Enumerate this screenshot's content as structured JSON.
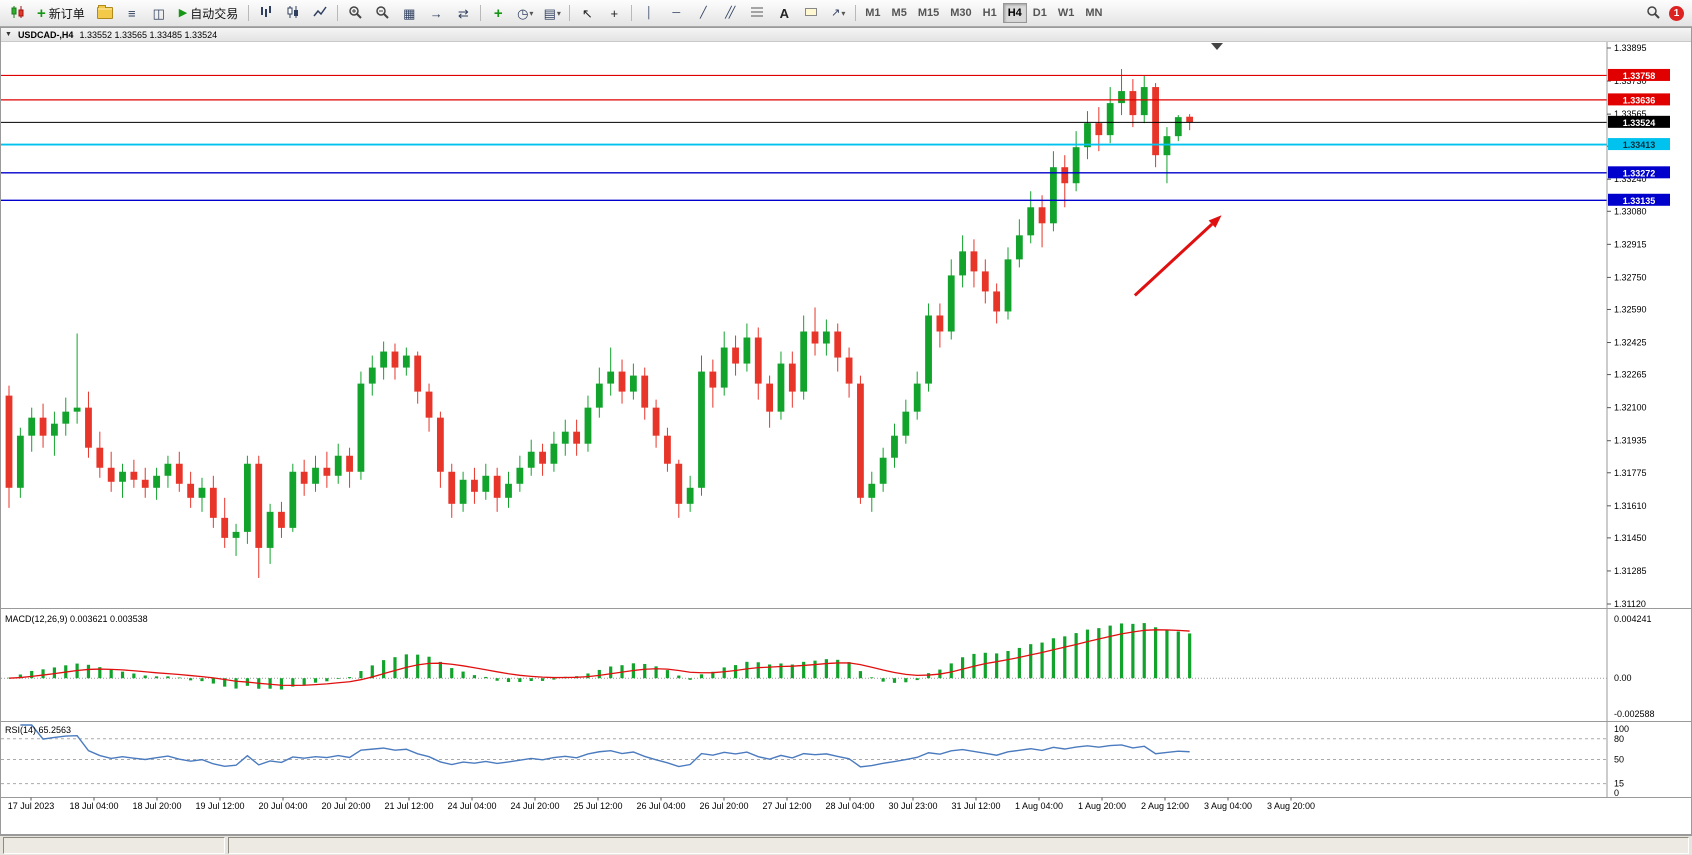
{
  "window": {
    "title_symbol": "USDCAD-,H4",
    "ohlc": "1.33552 1.33565 1.33485 1.33524"
  },
  "toolbar": {
    "new_order_label": "新订单",
    "autotrade_label": "自动交易",
    "notification_count": "1",
    "timeframes": [
      {
        "label": "M1"
      },
      {
        "label": "M5"
      },
      {
        "label": "M15"
      },
      {
        "label": "M30"
      },
      {
        "label": "H1"
      },
      {
        "label": "H4"
      },
      {
        "label": "D1"
      },
      {
        "label": "W1"
      },
      {
        "label": "MN"
      }
    ]
  },
  "indicators": {
    "macd": {
      "label": "MACD(12,26,9) 0.003621 0.003538",
      "params": {
        "fast": 12,
        "slow": 26,
        "signal": 9
      },
      "axis": {
        "max": 0.004241,
        "min": -0.002588,
        "max_label": "0.004241",
        "zero_label": "0.00",
        "min_label": "-0.002588"
      }
    },
    "rsi": {
      "label": "RSI(14) 65.2563",
      "period": 14,
      "levels": [
        80,
        50,
        15
      ],
      "axis_ticks": [
        100,
        80,
        50,
        15,
        0
      ]
    }
  },
  "chart_data": {
    "type": "candlestick",
    "symbol": "USDCAD",
    "timeframe": "H4",
    "ylim": [
      1.3112,
      1.33895
    ],
    "colors": {
      "up": "#12a32c",
      "down": "#e8352a",
      "macd_hist": "#12a32c",
      "macd_signal": "#e01010",
      "rsi_line": "#4b7bbf"
    },
    "price_ticks": [
      1.33895,
      1.3373,
      1.33565,
      1.33405,
      1.3324,
      1.3308,
      1.32915,
      1.3275,
      1.3259,
      1.32425,
      1.32265,
      1.321,
      1.31935,
      1.31775,
      1.3161,
      1.3145,
      1.31285,
      1.3112
    ],
    "levels": [
      {
        "price": 1.33758,
        "color": "#e00000",
        "width": 1.2,
        "text": "#ffffff",
        "type": "resistance"
      },
      {
        "price": 1.33636,
        "color": "#e00000",
        "width": 1.2,
        "text": "#ffffff",
        "type": "resistance"
      },
      {
        "price": 1.33524,
        "color": "#000000",
        "width": 1.0,
        "text": "#ffffff",
        "type": "current-price"
      },
      {
        "price": 1.33413,
        "color": "#00c2ee",
        "width": 1.8,
        "text": "#00313f",
        "type": "support"
      },
      {
        "price": 1.33272,
        "color": "#0000cc",
        "width": 1.4,
        "text": "#ffffff",
        "type": "support"
      },
      {
        "price": 1.33135,
        "color": "#0000cc",
        "width": 1.4,
        "text": "#ffffff",
        "type": "support"
      }
    ],
    "arrow": {
      "x1_frac": 0.706,
      "price1": 1.3266,
      "x2_frac": 0.76,
      "price2": 1.3306,
      "color": "#e01010"
    },
    "time_labels": [
      "17 Jul 2023",
      "18 Jul 04:00",
      "18 Jul 20:00",
      "19 Jul 12:00",
      "20 Jul 04:00",
      "20 Jul 20:00",
      "21 Jul 12:00",
      "24 Jul 04:00",
      "24 Jul 20:00",
      "25 Jul 12:00",
      "26 Jul 04:00",
      "26 Jul 20:00",
      "27 Jul 12:00",
      "28 Jul 04:00",
      "30 Jul 23:00",
      "31 Jul 12:00",
      "1 Aug 04:00",
      "1 Aug 20:00",
      "2 Aug 12:00",
      "3 Aug 04:00",
      "3 Aug 20:00"
    ],
    "candles": [
      [
        1.3216,
        1.3221,
        1.316,
        1.317
      ],
      [
        1.317,
        1.32,
        1.3165,
        1.3196
      ],
      [
        1.3196,
        1.321,
        1.3188,
        1.3205
      ],
      [
        1.3205,
        1.3212,
        1.319,
        1.3196
      ],
      [
        1.3196,
        1.3208,
        1.3186,
        1.3202
      ],
      [
        1.3202,
        1.3215,
        1.3196,
        1.3208
      ],
      [
        1.3208,
        1.3247,
        1.3202,
        1.321
      ],
      [
        1.321,
        1.3218,
        1.3185,
        1.319
      ],
      [
        1.319,
        1.3198,
        1.3175,
        1.318
      ],
      [
        1.318,
        1.3188,
        1.3168,
        1.3173
      ],
      [
        1.3173,
        1.3182,
        1.3165,
        1.3178
      ],
      [
        1.3178,
        1.3184,
        1.317,
        1.3174
      ],
      [
        1.3174,
        1.318,
        1.3165,
        1.317
      ],
      [
        1.317,
        1.318,
        1.3164,
        1.3176
      ],
      [
        1.3176,
        1.3186,
        1.317,
        1.3182
      ],
      [
        1.3182,
        1.3188,
        1.3168,
        1.3172
      ],
      [
        1.3172,
        1.3178,
        1.316,
        1.3165
      ],
      [
        1.3165,
        1.3175,
        1.3158,
        1.317
      ],
      [
        1.317,
        1.3176,
        1.315,
        1.3155
      ],
      [
        1.3155,
        1.3165,
        1.314,
        1.3145
      ],
      [
        1.3145,
        1.3152,
        1.3136,
        1.3148
      ],
      [
        1.3148,
        1.3186,
        1.3142,
        1.3182
      ],
      [
        1.3182,
        1.3186,
        1.3125,
        1.314
      ],
      [
        1.314,
        1.3162,
        1.3132,
        1.3158
      ],
      [
        1.3158,
        1.3163,
        1.3145,
        1.315
      ],
      [
        1.315,
        1.3182,
        1.3148,
        1.3178
      ],
      [
        1.3178,
        1.3184,
        1.3166,
        1.3172
      ],
      [
        1.3172,
        1.3186,
        1.3168,
        1.318
      ],
      [
        1.318,
        1.3188,
        1.317,
        1.3176
      ],
      [
        1.3176,
        1.3192,
        1.3172,
        1.3186
      ],
      [
        1.3186,
        1.319,
        1.317,
        1.3178
      ],
      [
        1.3178,
        1.3228,
        1.3174,
        1.3222
      ],
      [
        1.3222,
        1.3236,
        1.3216,
        1.323
      ],
      [
        1.323,
        1.3243,
        1.3224,
        1.3238
      ],
      [
        1.3238,
        1.3242,
        1.3224,
        1.323
      ],
      [
        1.323,
        1.324,
        1.3226,
        1.3236
      ],
      [
        1.3236,
        1.3238,
        1.3212,
        1.3218
      ],
      [
        1.3218,
        1.3222,
        1.3198,
        1.3205
      ],
      [
        1.3205,
        1.3208,
        1.317,
        1.3178
      ],
      [
        1.3178,
        1.3182,
        1.3155,
        1.3162
      ],
      [
        1.3162,
        1.3178,
        1.3158,
        1.3174
      ],
      [
        1.3174,
        1.318,
        1.3162,
        1.3168
      ],
      [
        1.3168,
        1.3182,
        1.3164,
        1.3176
      ],
      [
        1.3176,
        1.318,
        1.3158,
        1.3165
      ],
      [
        1.3165,
        1.3178,
        1.316,
        1.3172
      ],
      [
        1.3172,
        1.3186,
        1.3168,
        1.318
      ],
      [
        1.318,
        1.3194,
        1.3176,
        1.3188
      ],
      [
        1.3188,
        1.3192,
        1.3176,
        1.3182
      ],
      [
        1.3182,
        1.3198,
        1.3178,
        1.3192
      ],
      [
        1.3192,
        1.3204,
        1.3186,
        1.3198
      ],
      [
        1.3198,
        1.3204,
        1.3186,
        1.3192
      ],
      [
        1.3192,
        1.3216,
        1.3188,
        1.321
      ],
      [
        1.321,
        1.323,
        1.3205,
        1.3222
      ],
      [
        1.3222,
        1.324,
        1.3216,
        1.3228
      ],
      [
        1.3228,
        1.3234,
        1.3212,
        1.3218
      ],
      [
        1.3218,
        1.3232,
        1.3214,
        1.3226
      ],
      [
        1.3226,
        1.323,
        1.3204,
        1.321
      ],
      [
        1.321,
        1.3214,
        1.319,
        1.3196
      ],
      [
        1.3196,
        1.32,
        1.3178,
        1.3182
      ],
      [
        1.3182,
        1.3184,
        1.3155,
        1.3162
      ],
      [
        1.3162,
        1.3176,
        1.3158,
        1.317
      ],
      [
        1.317,
        1.3236,
        1.3166,
        1.3228
      ],
      [
        1.3228,
        1.3234,
        1.321,
        1.322
      ],
      [
        1.322,
        1.3248,
        1.3216,
        1.324
      ],
      [
        1.324,
        1.3246,
        1.3226,
        1.3232
      ],
      [
        1.3232,
        1.3252,
        1.3228,
        1.3245
      ],
      [
        1.3245,
        1.325,
        1.3214,
        1.3222
      ],
      [
        1.3222,
        1.3226,
        1.32,
        1.3208
      ],
      [
        1.3208,
        1.3238,
        1.3204,
        1.3232
      ],
      [
        1.3232,
        1.3238,
        1.321,
        1.3218
      ],
      [
        1.3218,
        1.3256,
        1.3214,
        1.3248
      ],
      [
        1.3248,
        1.326,
        1.3236,
        1.3242
      ],
      [
        1.3242,
        1.3254,
        1.3236,
        1.3248
      ],
      [
        1.3248,
        1.3252,
        1.3228,
        1.3235
      ],
      [
        1.3235,
        1.324,
        1.3215,
        1.3222
      ],
      [
        1.3222,
        1.3226,
        1.3162,
        1.3165
      ],
      [
        1.3165,
        1.3178,
        1.3158,
        1.3172
      ],
      [
        1.3172,
        1.319,
        1.3168,
        1.3185
      ],
      [
        1.3185,
        1.3202,
        1.318,
        1.3196
      ],
      [
        1.3196,
        1.3214,
        1.3192,
        1.3208
      ],
      [
        1.3208,
        1.3228,
        1.3204,
        1.3222
      ],
      [
        1.3222,
        1.3262,
        1.3218,
        1.3256
      ],
      [
        1.3256,
        1.3262,
        1.324,
        1.3248
      ],
      [
        1.3248,
        1.3284,
        1.3244,
        1.3276
      ],
      [
        1.3276,
        1.3296,
        1.327,
        1.3288
      ],
      [
        1.3288,
        1.3294,
        1.327,
        1.3278
      ],
      [
        1.3278,
        1.3284,
        1.3262,
        1.3268
      ],
      [
        1.3268,
        1.3272,
        1.3252,
        1.3258
      ],
      [
        1.3258,
        1.329,
        1.3254,
        1.3284
      ],
      [
        1.3284,
        1.3304,
        1.328,
        1.3296
      ],
      [
        1.3296,
        1.3318,
        1.3292,
        1.331
      ],
      [
        1.331,
        1.3316,
        1.329,
        1.3302
      ],
      [
        1.3302,
        1.3338,
        1.3298,
        1.333
      ],
      [
        1.333,
        1.3336,
        1.331,
        1.3322
      ],
      [
        1.3322,
        1.3348,
        1.3318,
        1.334
      ],
      [
        1.334,
        1.3358,
        1.3334,
        1.3352
      ],
      [
        1.3352,
        1.336,
        1.3338,
        1.3346
      ],
      [
        1.3346,
        1.337,
        1.3342,
        1.3362
      ],
      [
        1.3362,
        1.3379,
        1.3356,
        1.3368
      ],
      [
        1.3368,
        1.3374,
        1.335,
        1.3356
      ],
      [
        1.3356,
        1.3376,
        1.3352,
        1.337
      ],
      [
        1.337,
        1.3372,
        1.333,
        1.3336
      ],
      [
        1.3336,
        1.335,
        1.3322,
        1.33455
      ],
      [
        1.33455,
        1.3356,
        1.3343,
        1.3355
      ],
      [
        1.33552,
        1.33565,
        1.33485,
        1.33524
      ]
    ]
  }
}
